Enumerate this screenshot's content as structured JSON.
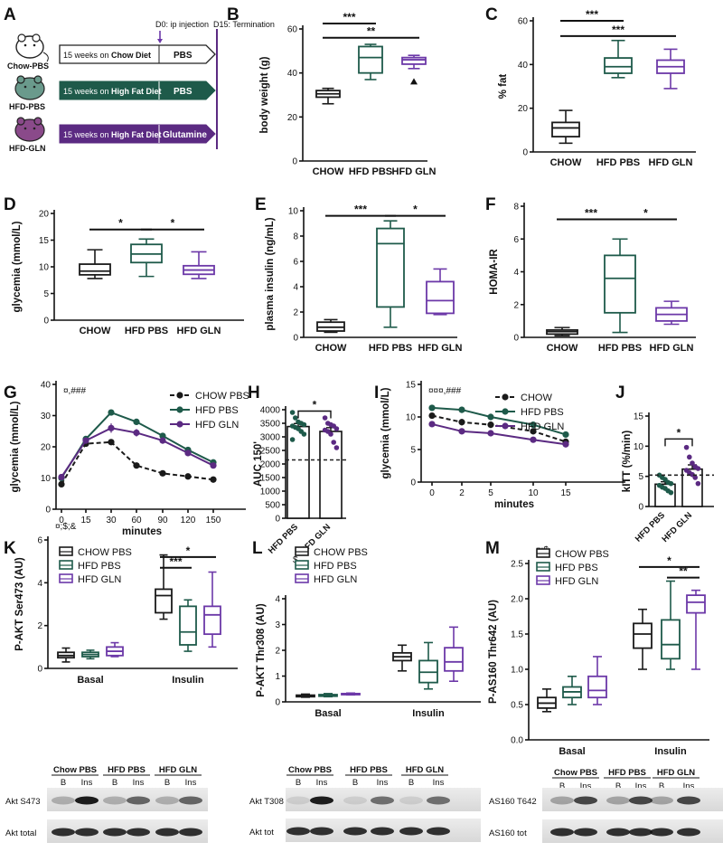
{
  "colors": {
    "chow": "#1a1a1a",
    "hfd_pbs": "#1e5a4a",
    "hfd_gln": "#5b2a82",
    "hfd_gln_box": "#6c38a8",
    "dashed_ref": "#222222"
  },
  "panel_labels": [
    "A",
    "B",
    "C",
    "D",
    "E",
    "F",
    "G",
    "H",
    "I",
    "J",
    "K",
    "L",
    "M"
  ],
  "panel_a": {
    "timeline_labels": {
      "d0": "D0: ip injection",
      "d15": "D15: Termination"
    },
    "rows": [
      {
        "group": "Chow-PBS",
        "diet_prefix": "15 weeks on ",
        "diet": "Chow Diet",
        "treatment": "PBS"
      },
      {
        "group": "HFD-PBS",
        "diet_prefix": "15 weeks on ",
        "diet": "High Fat Diet",
        "treatment": "PBS"
      },
      {
        "group": "HFD-GLN",
        "diet_prefix": "15 weeks on ",
        "diet": "High Fat Diet",
        "treatment": "Glutamine"
      }
    ]
  },
  "chart_data": [
    {
      "panel": "B",
      "type": "box",
      "ylabel": "body weight (g)",
      "ylim": [
        0,
        60
      ],
      "yticks": [
        0,
        20,
        40,
        60
      ],
      "categories": [
        "CHOW",
        "HFD PBS",
        "HFD GLN"
      ],
      "boxes": [
        {
          "min": 26,
          "q1": 29,
          "median": 30.5,
          "q3": 32,
          "max": 33
        },
        {
          "min": 37,
          "q1": 40,
          "median": 47,
          "q3": 52,
          "max": 53
        },
        {
          "min": 42,
          "q1": 44,
          "median": 46,
          "q3": 47,
          "max": 48
        }
      ],
      "outliers": [
        {
          "group": 2,
          "value": 36
        }
      ],
      "sig": [
        {
          "from": 0,
          "to": 1,
          "label": "***",
          "y": 65
        },
        {
          "from": 0,
          "to": 2,
          "label": "**",
          "y": 56
        }
      ]
    },
    {
      "panel": "C",
      "type": "box",
      "ylabel": "% fat",
      "ylim": [
        0,
        60
      ],
      "yticks": [
        0,
        20,
        40,
        60
      ],
      "categories": [
        "CHOW",
        "HFD PBS",
        "HFD GLN"
      ],
      "boxes": [
        {
          "min": 4,
          "q1": 7,
          "median": 11,
          "q3": 13.5,
          "max": 19
        },
        {
          "min": 34,
          "q1": 36,
          "median": 39,
          "q3": 43,
          "max": 51
        },
        {
          "min": 29,
          "q1": 36,
          "median": 39,
          "q3": 42,
          "max": 47
        }
      ],
      "sig": [
        {
          "from": 0,
          "to": 1,
          "label": "***",
          "y": 60
        },
        {
          "from": 0,
          "to": 2,
          "label": "***",
          "y": 53
        }
      ]
    },
    {
      "panel": "D",
      "type": "box",
      "ylabel": "glycemia (mmol/L)",
      "ylim": [
        0,
        20
      ],
      "yticks": [
        0,
        5,
        10,
        15,
        20
      ],
      "categories": [
        "CHOW",
        "HFD PBS",
        "HFD GLN"
      ],
      "boxes": [
        {
          "min": 7.8,
          "q1": 8.5,
          "median": 9.2,
          "q3": 10.5,
          "max": 13.2
        },
        {
          "min": 8.2,
          "q1": 10.8,
          "median": 12.4,
          "q3": 14.2,
          "max": 15.2
        },
        {
          "min": 7.8,
          "q1": 8.6,
          "median": 9.4,
          "q3": 10.2,
          "max": 12.8
        }
      ],
      "sig": [
        {
          "from": 0,
          "to": 1,
          "label": "*",
          "y": 17
        },
        {
          "from": 1,
          "to": 2,
          "label": "*",
          "y": 17
        }
      ]
    },
    {
      "panel": "E",
      "type": "box",
      "ylabel": "plasma insulin (ng/mL)",
      "ylim": [
        0,
        10
      ],
      "yticks": [
        0,
        2,
        4,
        6,
        8,
        10
      ],
      "categories": [
        "CHOW",
        "HFD PBS",
        "HFD GLN"
      ],
      "boxes": [
        {
          "min": 0.4,
          "q1": 0.5,
          "median": 0.8,
          "q3": 1.2,
          "max": 1.4
        },
        {
          "min": 0.8,
          "q1": 2.4,
          "median": 7.4,
          "q3": 8.6,
          "max": 9.2
        },
        {
          "min": 1.8,
          "q1": 1.9,
          "median": 2.9,
          "q3": 4.4,
          "max": 5.4
        }
      ],
      "sig": [
        {
          "from": 0,
          "to": 1,
          "label": "***",
          "y": 9.6
        },
        {
          "from": 1,
          "to": 2,
          "label": "*",
          "y": 9.6
        }
      ]
    },
    {
      "panel": "F",
      "type": "box",
      "ylabel": "HOMA-IR",
      "ylim": [
        0,
        8
      ],
      "yticks": [
        0,
        2,
        4,
        6,
        8
      ],
      "categories": [
        "CHOW",
        "HFD PBS",
        "HFD GLN"
      ],
      "boxes": [
        {
          "min": 0.1,
          "q1": 0.2,
          "median": 0.35,
          "q3": 0.45,
          "max": 0.6
        },
        {
          "min": 0.3,
          "q1": 1.5,
          "median": 3.6,
          "q3": 5.0,
          "max": 6.0
        },
        {
          "min": 0.8,
          "q1": 1.0,
          "median": 1.4,
          "q3": 1.8,
          "max": 2.2
        }
      ],
      "sig": [
        {
          "from": 0,
          "to": 1,
          "label": "***",
          "y": 7.2
        },
        {
          "from": 1,
          "to": 2,
          "label": "*",
          "y": 7.2
        }
      ]
    },
    {
      "panel": "G",
      "type": "line",
      "ylabel": "glycemia (mmol/L)",
      "xlabel": "minutes",
      "annotation": "¤,###",
      "x": [
        0,
        15,
        30,
        60,
        90,
        120,
        150
      ],
      "xticks": [
        "0",
        "15",
        "30",
        "60",
        "90",
        "120",
        "150"
      ],
      "ylim": [
        0,
        40
      ],
      "yticks": [
        0,
        10,
        20,
        30,
        40
      ],
      "series": [
        {
          "name": "CHOW PBS",
          "style": "dashed",
          "values": [
            8,
            21,
            21.5,
            14,
            11.5,
            10.5,
            9.5
          ],
          "err": [
            0.4,
            0.8,
            0.8,
            0.6,
            0.5,
            0.5,
            0.4
          ]
        },
        {
          "name": "HFD PBS",
          "style": "solid",
          "values": [
            10,
            22.5,
            31,
            28,
            23.5,
            19,
            15
          ],
          "err": [
            0.5,
            1.0,
            0.8,
            1.0,
            1.0,
            0.9,
            0.8
          ]
        },
        {
          "name": "HFD GLN",
          "style": "solid",
          "values": [
            10.3,
            22,
            26,
            24.5,
            22,
            18,
            14
          ],
          "err": [
            0.5,
            1.0,
            1.5,
            1.2,
            1.0,
            1.0,
            0.8
          ]
        }
      ]
    },
    {
      "panel": "H",
      "type": "bar",
      "ylabel": "AUC 150'",
      "ylim": [
        0,
        4000
      ],
      "yticks": [
        0,
        500,
        1000,
        1500,
        2000,
        2500,
        3000,
        3500,
        4000
      ],
      "categories": [
        "HFD PBS",
        "HFD GLN"
      ],
      "values": [
        3380,
        3200
      ],
      "err": [
        110,
        140
      ],
      "reference_line": 2150,
      "points": [
        [
          3900,
          3700,
          3550,
          3500,
          3450,
          3400,
          3350,
          3300,
          3200,
          3100,
          2900
        ],
        [
          3700,
          3500,
          3450,
          3400,
          3300,
          3250,
          3200,
          3100,
          2800,
          2600
        ]
      ],
      "sig": [
        {
          "from": 0,
          "to": 1,
          "label": "*",
          "y": 3950
        }
      ]
    },
    {
      "panel": "I",
      "type": "line",
      "ylabel": "glycemia (mmol/L)",
      "xlabel": "minutes",
      "annotation": "¤¤¤,###",
      "x": [
        0,
        2,
        5,
        10,
        15
      ],
      "xticks": [
        "0",
        "2",
        "5",
        "10",
        "15"
      ],
      "ylim": [
        0,
        15
      ],
      "yticks": [
        0,
        5,
        10,
        15
      ],
      "series": [
        {
          "name": "CHOW",
          "style": "dashed",
          "values": [
            10.2,
            9.2,
            8.8,
            7.8,
            6.2
          ],
          "err": [
            0.4,
            0.5,
            0.5,
            0.4,
            0.3
          ]
        },
        {
          "name": "HFD PBS",
          "style": "solid",
          "values": [
            11.4,
            11.1,
            10,
            8.8,
            7.3
          ],
          "err": [
            0.3,
            0.5,
            0.5,
            0.4,
            0.3
          ]
        },
        {
          "name": "HFD GLN",
          "style": "solid",
          "values": [
            8.9,
            7.8,
            7.5,
            6.5,
            5.8
          ],
          "err": [
            0.3,
            0.3,
            0.4,
            0.3,
            0.3
          ]
        }
      ]
    },
    {
      "panel": "J",
      "type": "bar",
      "ylabel": "kITT (%/min)",
      "ylim": [
        0,
        15
      ],
      "yticks": [
        0,
        5,
        10,
        15
      ],
      "categories": [
        "HFD PBS",
        "HFD GLN"
      ],
      "values": [
        3.7,
        6.2
      ],
      "err": [
        0.4,
        0.7
      ],
      "reference_line": 5.2,
      "points": [
        [
          5.2,
          4.8,
          4.5,
          4.0,
          3.8,
          3.5,
          3.2,
          3.0,
          2.6,
          2.3
        ],
        [
          9.8,
          8.2,
          7.2,
          6.6,
          6.3,
          6.0,
          5.6,
          5.3,
          4.8,
          3.8
        ]
      ],
      "sig": [
        {
          "from": 0,
          "to": 1,
          "label": "*",
          "y": 11.2
        }
      ]
    },
    {
      "panel": "K",
      "type": "grouped_box",
      "ylabel": "P-AKT Ser473 (AU)",
      "annotation": "¤;$;&",
      "ylim": [
        0,
        6
      ],
      "yticks": [
        0,
        2,
        4,
        6
      ],
      "groups": [
        "Basal",
        "Insulin"
      ],
      "legend": [
        "CHOW PBS",
        "HFD PBS",
        "HFD GLN"
      ],
      "boxes": [
        [
          {
            "min": 0.3,
            "q1": 0.5,
            "median": 0.6,
            "q3": 0.75,
            "max": 0.95
          },
          {
            "min": 0.45,
            "q1": 0.55,
            "median": 0.65,
            "q3": 0.75,
            "max": 0.85
          },
          {
            "min": 0.55,
            "q1": 0.6,
            "median": 0.8,
            "q3": 1.0,
            "max": 1.2
          }
        ],
        [
          {
            "min": 2.3,
            "q1": 2.6,
            "median": 3.4,
            "q3": 3.7,
            "max": 5.3
          },
          {
            "min": 0.8,
            "q1": 1.1,
            "median": 1.7,
            "q3": 2.9,
            "max": 3.2
          },
          {
            "min": 1.0,
            "q1": 1.6,
            "median": 2.5,
            "q3": 2.9,
            "max": 4.5
          }
        ]
      ],
      "sig": [
        {
          "from": [
            1,
            0
          ],
          "to": [
            1,
            1
          ],
          "label": "***",
          "y": 4.7
        },
        {
          "from": [
            1,
            0
          ],
          "to": [
            1,
            2
          ],
          "label": "*",
          "y": 5.2
        }
      ],
      "blot": {
        "conditions": [
          "Chow PBS",
          "HFD PBS",
          "HFD GLN"
        ],
        "lanes": [
          "B",
          "Ins",
          "B",
          "Ins",
          "B",
          "Ins"
        ],
        "rows": [
          "Akt S473",
          "Akt total"
        ]
      }
    },
    {
      "panel": "L",
      "type": "grouped_box",
      "ylabel": "P-AKT Thr308 (AU)",
      "annotation": "$",
      "ylim": [
        0,
        4
      ],
      "yticks": [
        0,
        1,
        2,
        3,
        4
      ],
      "groups": [
        "Basal",
        "Insulin"
      ],
      "legend": [
        "CHOW PBS",
        "HFD PBS",
        "HFD GLN"
      ],
      "boxes": [
        [
          {
            "min": 0.18,
            "q1": 0.2,
            "median": 0.22,
            "q3": 0.26,
            "max": 0.3
          },
          {
            "min": 0.2,
            "q1": 0.22,
            "median": 0.25,
            "q3": 0.28,
            "max": 0.32
          },
          {
            "min": 0.27,
            "q1": 0.28,
            "median": 0.3,
            "q3": 0.32,
            "max": 0.34
          }
        ],
        [
          {
            "min": 1.2,
            "q1": 1.6,
            "median": 1.75,
            "q3": 1.9,
            "max": 2.2
          },
          {
            "min": 0.5,
            "q1": 0.75,
            "median": 1.15,
            "q3": 1.6,
            "max": 2.3
          },
          {
            "min": 0.8,
            "q1": 1.2,
            "median": 1.55,
            "q3": 2.1,
            "max": 2.9
          }
        ]
      ],
      "sig": [],
      "blot": {
        "conditions": [
          "Chow PBS",
          "HFD PBS",
          "HFD GLN"
        ],
        "lanes": [
          "B",
          "Ins",
          "B",
          "Ins",
          "B",
          "Ins"
        ],
        "rows": [
          "Akt T308",
          "Akt tot"
        ]
      }
    },
    {
      "panel": "M",
      "type": "grouped_box",
      "ylabel": "P-AS160 Thr642 (AU)",
      "annotation": "¤;$",
      "ylim": [
        0,
        2.5
      ],
      "yticks": [
        0.0,
        0.5,
        1.0,
        1.5,
        2.0,
        2.5
      ],
      "groups": [
        "Basal",
        "Insulin"
      ],
      "legend": [
        "CHOW PBS",
        "HFD PBS",
        "HFD GLN"
      ],
      "boxes": [
        [
          {
            "min": 0.4,
            "q1": 0.45,
            "median": 0.52,
            "q3": 0.6,
            "max": 0.72
          },
          {
            "min": 0.5,
            "q1": 0.6,
            "median": 0.68,
            "q3": 0.75,
            "max": 0.9
          },
          {
            "min": 0.5,
            "q1": 0.6,
            "median": 0.7,
            "q3": 0.9,
            "max": 1.18
          }
        ],
        [
          {
            "min": 1.0,
            "q1": 1.3,
            "median": 1.5,
            "q3": 1.65,
            "max": 1.85
          },
          {
            "min": 1.0,
            "q1": 1.15,
            "median": 1.35,
            "q3": 1.7,
            "max": 2.25
          },
          {
            "min": 1.0,
            "q1": 1.8,
            "median": 1.95,
            "q3": 2.05,
            "max": 2.12
          }
        ]
      ],
      "sig": [
        {
          "from": [
            1,
            0
          ],
          "to": [
            1,
            2
          ],
          "label": "*",
          "y": 2.45
        },
        {
          "from": [
            1,
            1
          ],
          "to": [
            1,
            2
          ],
          "label": "**",
          "y": 2.3
        }
      ],
      "blot": {
        "conditions": [
          "Chow PBS",
          "HFD PBS",
          "HFD GLN"
        ],
        "lanes": [
          "B",
          "Ins",
          "B",
          "Ins",
          "B",
          "Ins"
        ],
        "rows": [
          "AS160 T642",
          "AS160 tot"
        ]
      }
    }
  ]
}
